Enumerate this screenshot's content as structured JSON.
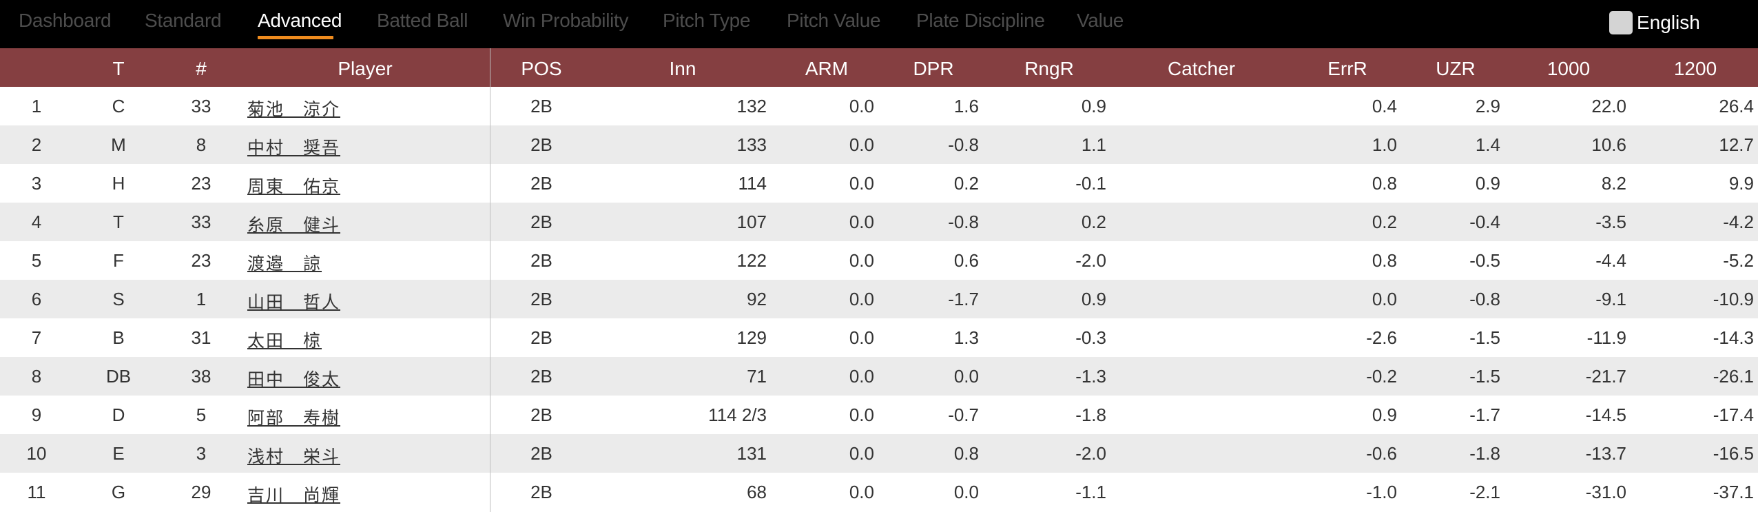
{
  "nav": {
    "tabs": [
      {
        "label": "Dashboard"
      },
      {
        "label": "Standard"
      },
      {
        "label": "Advanced"
      },
      {
        "label": "Batted Ball"
      },
      {
        "label": "Win Probability"
      },
      {
        "label": "Pitch Type"
      },
      {
        "label": "Pitch Value"
      },
      {
        "label": "Plate Discipline"
      },
      {
        "label": "Value"
      }
    ],
    "active_tab": "Advanced",
    "language_toggle": {
      "label": "English",
      "checked": false
    }
  },
  "colors": {
    "topbar": "#000000",
    "header": "#853f41",
    "active_underline": "#f08c1e",
    "alt_row": "#ebebeb"
  },
  "table": {
    "headers": [
      "",
      "T",
      "#",
      "Player",
      "POS",
      "Inn",
      "ARM",
      "DPR",
      "RngR",
      "Catcher",
      "ErrR",
      "UZR",
      "1000",
      "1200"
    ],
    "rows": [
      {
        "rank": "1",
        "team": "C",
        "num": "33",
        "player": "菊池　涼介",
        "pos": "2B",
        "inn": "132",
        "arm": "0.0",
        "dpr": "1.6",
        "rngr": "0.9",
        "catcher": "",
        "errr": "0.4",
        "uzr": "2.9",
        "v1000": "22.0",
        "v1200": "26.4"
      },
      {
        "rank": "2",
        "team": "M",
        "num": "8",
        "player": "中村　奨吾",
        "pos": "2B",
        "inn": "133",
        "arm": "0.0",
        "dpr": "-0.8",
        "rngr": "1.1",
        "catcher": "",
        "errr": "1.0",
        "uzr": "1.4",
        "v1000": "10.6",
        "v1200": "12.7"
      },
      {
        "rank": "3",
        "team": "H",
        "num": "23",
        "player": "周東　佑京",
        "pos": "2B",
        "inn": "114",
        "arm": "0.0",
        "dpr": "0.2",
        "rngr": "-0.1",
        "catcher": "",
        "errr": "0.8",
        "uzr": "0.9",
        "v1000": "8.2",
        "v1200": "9.9"
      },
      {
        "rank": "4",
        "team": "T",
        "num": "33",
        "player": "糸原　健斗",
        "pos": "2B",
        "inn": "107",
        "arm": "0.0",
        "dpr": "-0.8",
        "rngr": "0.2",
        "catcher": "",
        "errr": "0.2",
        "uzr": "-0.4",
        "v1000": "-3.5",
        "v1200": "-4.2"
      },
      {
        "rank": "5",
        "team": "F",
        "num": "23",
        "player": "渡邉　諒",
        "pos": "2B",
        "inn": "122",
        "arm": "0.0",
        "dpr": "0.6",
        "rngr": "-2.0",
        "catcher": "",
        "errr": "0.8",
        "uzr": "-0.5",
        "v1000": "-4.4",
        "v1200": "-5.2"
      },
      {
        "rank": "6",
        "team": "S",
        "num": "1",
        "player": "山田　哲人",
        "pos": "2B",
        "inn": "92",
        "arm": "0.0",
        "dpr": "-1.7",
        "rngr": "0.9",
        "catcher": "",
        "errr": "0.0",
        "uzr": "-0.8",
        "v1000": "-9.1",
        "v1200": "-10.9"
      },
      {
        "rank": "7",
        "team": "B",
        "num": "31",
        "player": "太田　椋",
        "pos": "2B",
        "inn": "129",
        "arm": "0.0",
        "dpr": "1.3",
        "rngr": "-0.3",
        "catcher": "",
        "errr": "-2.6",
        "uzr": "-1.5",
        "v1000": "-11.9",
        "v1200": "-14.3"
      },
      {
        "rank": "8",
        "team": "DB",
        "num": "38",
        "player": "田中　俊太",
        "pos": "2B",
        "inn": "71",
        "arm": "0.0",
        "dpr": "0.0",
        "rngr": "-1.3",
        "catcher": "",
        "errr": "-0.2",
        "uzr": "-1.5",
        "v1000": "-21.7",
        "v1200": "-26.1"
      },
      {
        "rank": "9",
        "team": "D",
        "num": "5",
        "player": "阿部　寿樹",
        "pos": "2B",
        "inn": "114 2/3",
        "arm": "0.0",
        "dpr": "-0.7",
        "rngr": "-1.8",
        "catcher": "",
        "errr": "0.9",
        "uzr": "-1.7",
        "v1000": "-14.5",
        "v1200": "-17.4"
      },
      {
        "rank": "10",
        "team": "E",
        "num": "3",
        "player": "浅村　栄斗",
        "pos": "2B",
        "inn": "131",
        "arm": "0.0",
        "dpr": "0.8",
        "rngr": "-2.0",
        "catcher": "",
        "errr": "-0.6",
        "uzr": "-1.8",
        "v1000": "-13.7",
        "v1200": "-16.5"
      },
      {
        "rank": "11",
        "team": "G",
        "num": "29",
        "player": "吉川　尚輝",
        "pos": "2B",
        "inn": "68",
        "arm": "0.0",
        "dpr": "0.0",
        "rngr": "-1.1",
        "catcher": "",
        "errr": "-1.0",
        "uzr": "-2.1",
        "v1000": "-31.0",
        "v1200": "-37.1"
      }
    ]
  }
}
